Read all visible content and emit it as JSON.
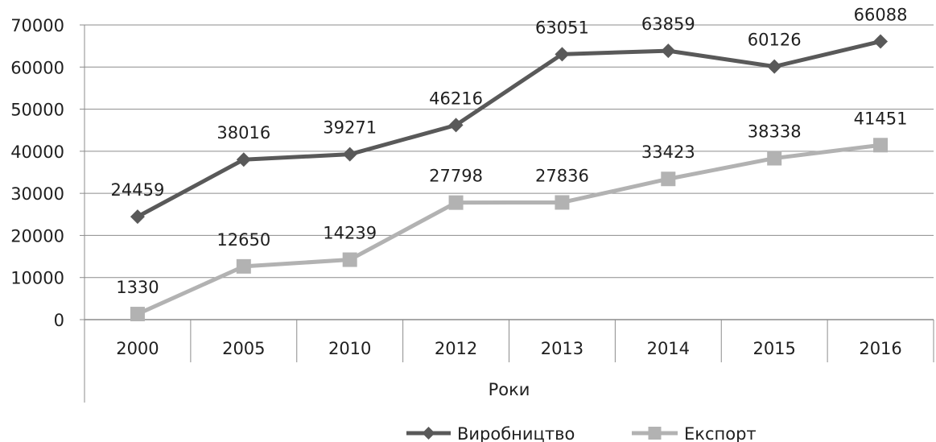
{
  "chart_data": {
    "type": "line",
    "title": "",
    "xlabel": "Роки",
    "ylabel": "",
    "categories": [
      "2000",
      "2005",
      "2010",
      "2012",
      "2013",
      "2014",
      "2015",
      "2016"
    ],
    "ylim": [
      0,
      70000
    ],
    "yticks": [
      0,
      10000,
      20000,
      30000,
      40000,
      50000,
      60000,
      70000
    ],
    "grid": true,
    "legend_position": "bottom",
    "series": [
      {
        "name": "Виробництво",
        "values": [
          24459,
          38016,
          39271,
          46216,
          63051,
          63859,
          60126,
          66088
        ],
        "labels": [
          "24459",
          "38016",
          "39271",
          "46216",
          "63051",
          "63859",
          "60126",
          "66088"
        ],
        "color": "#595959",
        "marker": "diamond"
      },
      {
        "name": "Експорт",
        "values": [
          1330,
          12650,
          14239,
          27798,
          27836,
          33423,
          38338,
          41451
        ],
        "labels": [
          "1330",
          "12650",
          "14239",
          "27798",
          "27836",
          "33423",
          "38338",
          "41451"
        ],
        "color": "#b2b2b2",
        "marker": "square"
      }
    ]
  }
}
